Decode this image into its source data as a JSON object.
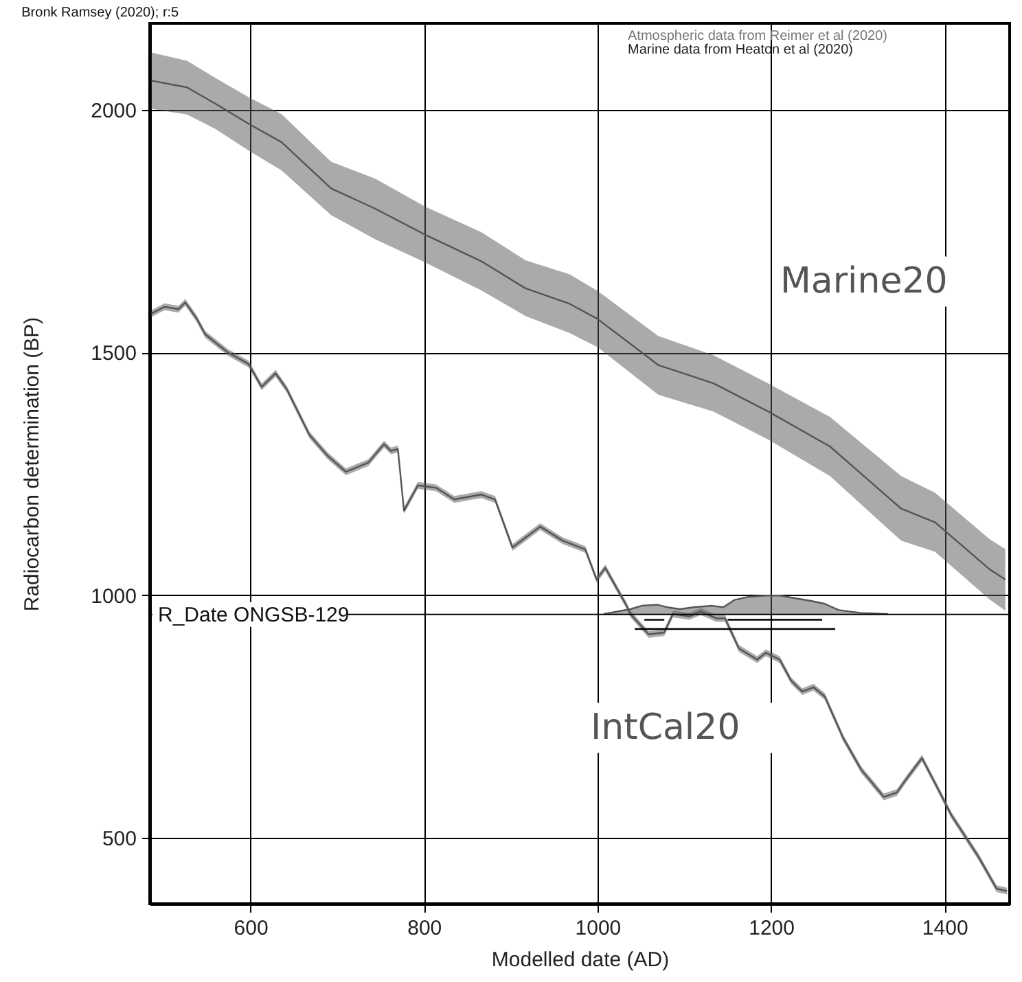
{
  "chart_data": {
    "type": "line",
    "title": "Bronk Ramsey (2020); r:5",
    "xlabel": "Modelled date (AD)",
    "ylabel": "Radiocarbon determination (BP)",
    "xlim": [
      484,
      1475
    ],
    "ylim": [
      364,
      2178
    ],
    "xticks": [
      600,
      800,
      1000,
      1200,
      1400
    ],
    "yticks": [
      500,
      1000,
      1500,
      2000
    ],
    "grid": true,
    "series": [
      {
        "name": "Marine20",
        "color": "#555555",
        "x": [
          486,
          527,
          560,
          598,
          636,
          693,
          744,
          802,
          866,
          917,
          968,
          1000,
          1070,
          1134,
          1197,
          1268,
          1350,
          1389,
          1452,
          1470
        ],
        "values": [
          2060,
          2046,
          2012,
          1971,
          1933,
          1838,
          1796,
          1742,
          1688,
          1632,
          1600,
          1569,
          1474,
          1436,
          1378,
          1306,
          1178,
          1150,
          1053,
          1032
        ],
        "lower": [
          2002,
          1990,
          1960,
          1916,
          1875,
          1783,
          1733,
          1685,
          1628,
          1575,
          1540,
          1511,
          1413,
          1378,
          1320,
          1245,
          1112,
          1089,
          991,
          968
        ],
        "upper": [
          2118,
          2101,
          2065,
          2026,
          1991,
          1893,
          1858,
          1800,
          1748,
          1690,
          1661,
          1627,
          1534,
          1494,
          1436,
          1367,
          1245,
          1211,
          1115,
          1095
        ]
      },
      {
        "name": "IntCal20",
        "color": "#555555",
        "x": [
          486,
          501,
          517,
          525,
          538,
          548,
          574,
          598,
          613,
          629,
          642,
          668,
          689,
          710,
          736,
          754,
          762,
          770,
          777,
          793,
          814,
          835,
          866,
          882,
          902,
          934,
          960,
          986,
          999,
          1009,
          1033,
          1038,
          1059,
          1077,
          1087,
          1106,
          1119,
          1137,
          1147,
          1163,
          1184,
          1194,
          1210,
          1223,
          1236,
          1249,
          1262,
          1283,
          1304,
          1330,
          1345,
          1356,
          1374,
          1392,
          1408,
          1439,
          1460,
          1472
        ],
        "values": [
          1580,
          1594,
          1589,
          1603,
          1570,
          1537,
          1500,
          1476,
          1429,
          1457,
          1424,
          1330,
          1287,
          1254,
          1273,
          1311,
          1297,
          1301,
          1174,
          1226,
          1221,
          1197,
          1207,
          1197,
          1098,
          1141,
          1112,
          1094,
          1032,
          1056,
          980,
          961,
          919,
          923,
          961,
          956,
          966,
          952,
          952,
          890,
          867,
          881,
          867,
          824,
          801,
          810,
          791,
          706,
          640,
          584,
          593,
          621,
          664,
          602,
          546,
          461,
          395,
          390
        ],
        "lower": [
          1573,
          1587,
          1582,
          1596,
          1563,
          1530,
          1493,
          1469,
          1422,
          1450,
          1417,
          1323,
          1280,
          1247,
          1266,
          1304,
          1290,
          1294,
          1167,
          1219,
          1214,
          1190,
          1200,
          1190,
          1091,
          1134,
          1105,
          1087,
          1025,
          1049,
          973,
          954,
          912,
          916,
          954,
          949,
          959,
          945,
          945,
          883,
          860,
          874,
          860,
          817,
          794,
          803,
          784,
          699,
          633,
          577,
          586,
          614,
          657,
          595,
          539,
          454,
          388,
          383
        ],
        "upper": [
          1587,
          1601,
          1596,
          1610,
          1577,
          1544,
          1507,
          1483,
          1436,
          1464,
          1431,
          1337,
          1294,
          1261,
          1280,
          1318,
          1304,
          1308,
          1181,
          1233,
          1228,
          1204,
          1214,
          1204,
          1105,
          1148,
          1119,
          1101,
          1039,
          1063,
          987,
          968,
          926,
          930,
          968,
          963,
          973,
          959,
          959,
          897,
          874,
          888,
          874,
          831,
          808,
          817,
          798,
          713,
          647,
          591,
          600,
          628,
          671,
          609,
          553,
          468,
          402,
          397
        ]
      },
      {
        "color": "#555555",
        "x": [
          1007,
          1038,
          1051,
          1069,
          1080,
          1095,
          1111,
          1132,
          1145,
          1158,
          1173,
          1194,
          1210,
          1226,
          1246,
          1262,
          1278,
          1304,
          1335
        ],
        "values": [
          961,
          971,
          978,
          980,
          975,
          971,
          975,
          978,
          975,
          990,
          996,
          999,
          999,
          994,
          988,
          982,
          969,
          963,
          961
        ],
        "lower": [
          961,
          961,
          961,
          961,
          961,
          961,
          961,
          961,
          961,
          961,
          961,
          961,
          961,
          961,
          961,
          961,
          961,
          961,
          961
        ],
        "upper": [
          961,
          971,
          978,
          980,
          975,
          971,
          975,
          978,
          975,
          990,
          996,
          999,
          999,
          994,
          988,
          982,
          969,
          963,
          961
        ]
      },
      {
        "color": "#000000",
        "x": [
          1054,
          1077
        ],
        "values": [
          949,
          949
        ]
      },
      {
        "color": "#000000",
        "x": [
          1150,
          1259
        ],
        "values": [
          949,
          949
        ]
      },
      {
        "color": "#000000",
        "x": [
          1043,
          1274
        ],
        "values": [
          930,
          930
        ]
      }
    ],
    "ref_lines": [
      {
        "axis": "y",
        "value": 960,
        "label": "R_Date ONGSB-129",
        "color": "#000000"
      }
    ],
    "annotations": [
      "Atmospheric data from Reimer et al (2020)",
      "Marine data from Heaton et al (2020)"
    ]
  }
}
